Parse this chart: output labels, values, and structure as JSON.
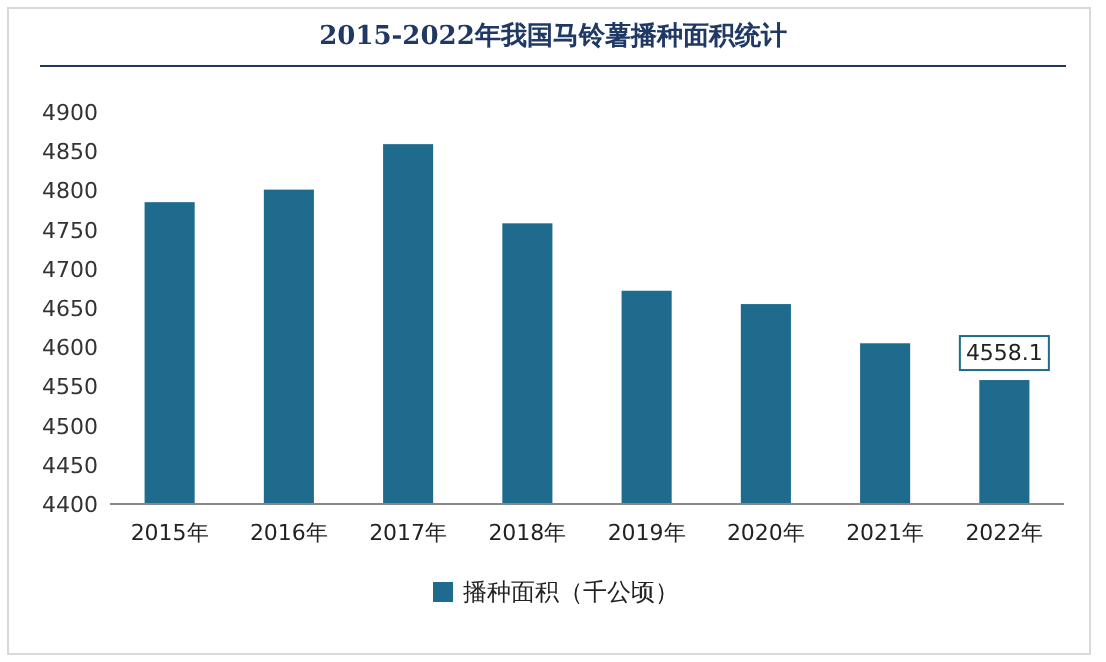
{
  "chart_data": {
    "type": "bar",
    "title": "2015-2022年我国马铃薯播种面积统计",
    "categories": [
      "2015年",
      "2016年",
      "2017年",
      "2018年",
      "2019年",
      "2020年",
      "2021年",
      "2022年"
    ],
    "series": [
      {
        "name": "播种面积（千公顷）",
        "color": "#1f6b8e",
        "values": [
          4785,
          4801,
          4859,
          4758,
          4672,
          4655,
          4605,
          4558.1
        ],
        "value_labels": [
          null,
          null,
          null,
          null,
          null,
          null,
          null,
          "4558.1"
        ]
      }
    ],
    "ylim": [
      4400,
      4900
    ],
    "yticks": [
      4400,
      4450,
      4500,
      4550,
      4600,
      4650,
      4700,
      4750,
      4800,
      4850,
      4900
    ],
    "grid": false,
    "legend": "bottom"
  }
}
